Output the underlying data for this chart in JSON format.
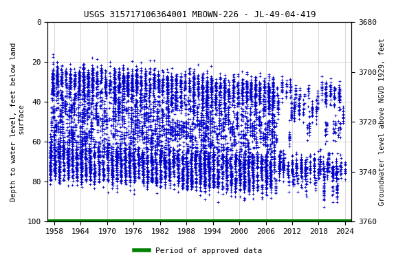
{
  "title": "USGS 315717106364001 MBOWN-226 - JL-49-04-419",
  "ylabel_left": "Depth to water level, feet below land\n surface",
  "ylabel_right": "Groundwater level above NGVD 1929, feet",
  "xlim": [
    1956.5,
    2025.5
  ],
  "ylim_left": [
    0,
    100
  ],
  "ylim_right": [
    3760,
    3680
  ],
  "xticks": [
    1958,
    1964,
    1970,
    1976,
    1982,
    1988,
    1994,
    2000,
    2006,
    2012,
    2018,
    2024
  ],
  "yticks_left": [
    0,
    20,
    40,
    60,
    80,
    100
  ],
  "yticks_right": [
    3760,
    3740,
    3720,
    3700,
    3680
  ],
  "point_color": "#0000cc",
  "legend_color": "#008000",
  "legend_label": "Period of approved data",
  "bg_color": "#ffffff",
  "grid_color": "#c8c8c8",
  "title_fontsize": 9,
  "axis_label_fontsize": 7.5,
  "tick_fontsize": 8
}
